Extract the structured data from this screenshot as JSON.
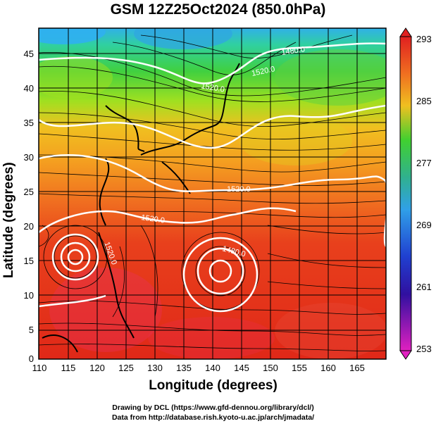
{
  "title": "GSM 12Z25Oct2024 (850.0hPa)",
  "x_axis_label": "Longitude (degrees)",
  "y_axis_label": "Latitude  (degrees)",
  "x_ticks": [
    "110",
    "115",
    "120",
    "125",
    "130",
    "135",
    "140",
    "145",
    "150",
    "155",
    "160",
    "165"
  ],
  "y_ticks": [
    "0",
    "5",
    "10",
    "15",
    "20",
    "25",
    "30",
    "35",
    "40",
    "45"
  ],
  "colorbar_ticks": [
    "293",
    "285",
    "277",
    "269",
    "261",
    "253"
  ],
  "contour_labels": [
    {
      "text": "1480.0"
    },
    {
      "text": "1520.0"
    },
    {
      "text": "1520.0"
    },
    {
      "text": "1520.0"
    },
    {
      "text": "1520.0"
    },
    {
      "text": "1520.0"
    },
    {
      "text": "1480.0"
    }
  ],
  "credit_line_1": "Drawing by DCL (https://www.gfd-dennou.org/library/dcl/)",
  "credit_line_2": "Data from http://database.rish.kyoto-u.ac.jp/arch/jmadata/",
  "colors": {
    "warm": "#e8301c",
    "orange": "#f4a020",
    "yellow": "#e8e020",
    "green": "#30c020",
    "cyan": "#30b0e0",
    "blue": "#2030d0",
    "magenta": "#e020c0"
  }
}
